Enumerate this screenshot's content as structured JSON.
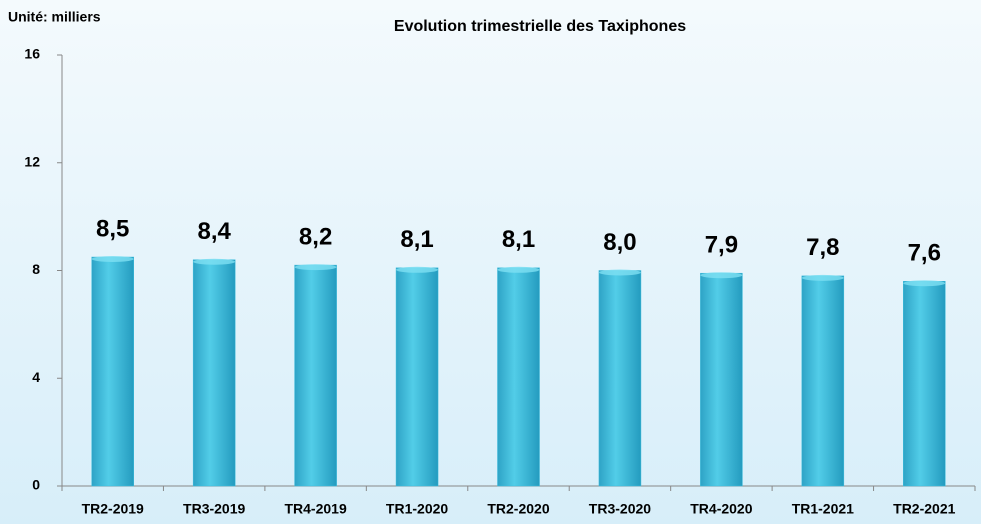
{
  "chart_data": {
    "type": "bar",
    "title": "Evolution trimestrielle des Taxiphones",
    "y_label": "Unité: milliers",
    "categories": [
      "TR2-2019",
      "TR3-2019",
      "TR4-2019",
      "TR1-2020",
      "TR2-2020",
      "TR3-2020",
      "TR4-2020",
      "TR1-2021",
      "TR2-2021"
    ],
    "values": [
      8.5,
      8.4,
      8.2,
      8.1,
      8.1,
      8.0,
      7.9,
      7.8,
      7.6
    ],
    "value_labels": [
      "8,5",
      "8,4",
      "8,2",
      "8,1",
      "8,1",
      "8,0",
      "7,9",
      "7,8",
      "7,6"
    ],
    "color": "#3cbcdc",
    "ylim": [
      0,
      16
    ],
    "yticks": [
      0,
      4,
      8,
      12,
      16
    ],
    "grid": false
  }
}
